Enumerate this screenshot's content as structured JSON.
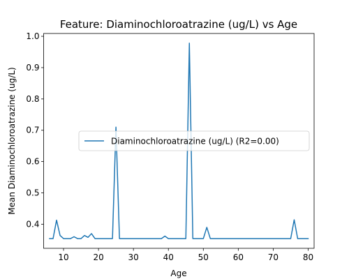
{
  "chart_data": {
    "type": "line",
    "title": "Feature: Diaminochloroatrazine (ug/L) vs Age",
    "xlabel": "Age",
    "ylabel": "Mean Diaminochloroatrazine (ug/L)",
    "xlim": [
      4.3,
      81.7
    ],
    "ylim": [
      0.323,
      1.009
    ],
    "xticks": [
      10,
      20,
      30,
      40,
      50,
      60,
      70,
      80
    ],
    "yticks": [
      0.4,
      0.5,
      0.6,
      0.7,
      0.8,
      0.9,
      1.0
    ],
    "grid": false,
    "legend_position": "center-right",
    "line_color": "#1f77b4",
    "series": [
      {
        "name": "Diaminochloroatrazine (ug/L) (R2=0.00)",
        "x": [
          6,
          7,
          8,
          9,
          10,
          11,
          12,
          13,
          14,
          15,
          16,
          17,
          18,
          19,
          20,
          21,
          22,
          23,
          24,
          25,
          26,
          27,
          28,
          29,
          30,
          31,
          32,
          33,
          34,
          35,
          36,
          37,
          38,
          39,
          40,
          41,
          42,
          43,
          44,
          45,
          46,
          47,
          48,
          49,
          50,
          51,
          52,
          53,
          54,
          55,
          56,
          57,
          58,
          59,
          60,
          61,
          62,
          63,
          64,
          65,
          66,
          67,
          68,
          69,
          70,
          71,
          72,
          73,
          74,
          75,
          76,
          77,
          78,
          79,
          80
        ],
        "values": [
          0.354,
          0.354,
          0.413,
          0.364,
          0.354,
          0.354,
          0.354,
          0.36,
          0.354,
          0.354,
          0.364,
          0.358,
          0.37,
          0.354,
          0.354,
          0.354,
          0.354,
          0.354,
          0.354,
          0.71,
          0.354,
          0.354,
          0.354,
          0.354,
          0.354,
          0.354,
          0.354,
          0.354,
          0.354,
          0.354,
          0.354,
          0.354,
          0.354,
          0.362,
          0.354,
          0.354,
          0.354,
          0.354,
          0.354,
          0.354,
          0.978,
          0.354,
          0.354,
          0.354,
          0.354,
          0.39,
          0.354,
          0.354,
          0.354,
          0.354,
          0.354,
          0.354,
          0.354,
          0.354,
          0.354,
          0.354,
          0.354,
          0.354,
          0.354,
          0.354,
          0.354,
          0.354,
          0.354,
          0.354,
          0.354,
          0.354,
          0.354,
          0.354,
          0.354,
          0.354,
          0.414,
          0.354,
          0.354,
          0.354,
          0.354
        ]
      }
    ]
  }
}
